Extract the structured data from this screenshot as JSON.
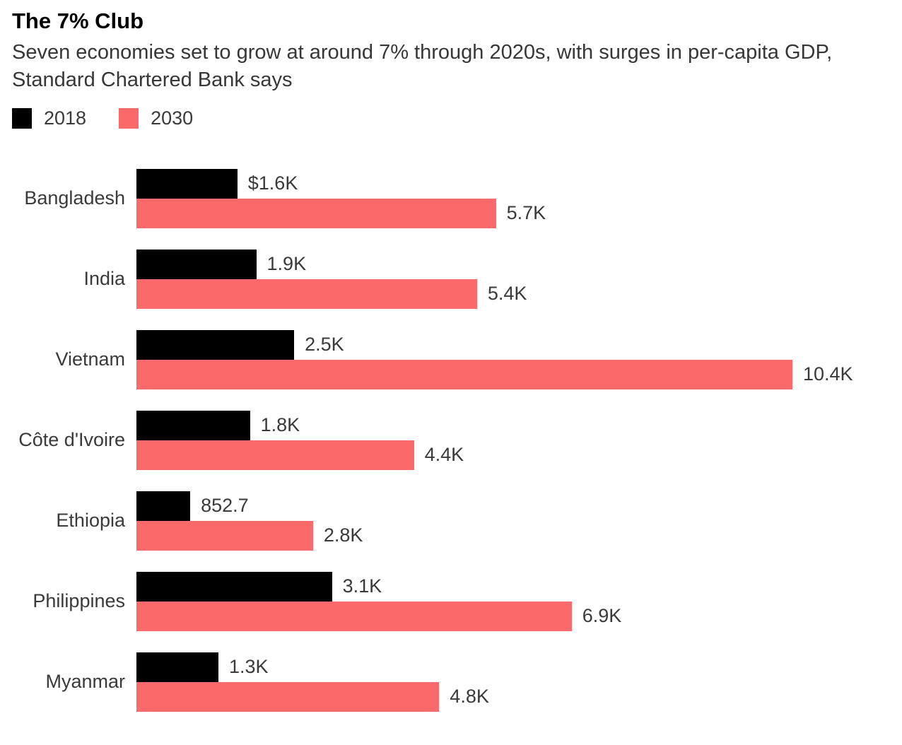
{
  "header": {
    "title": "The 7% Club",
    "subtitle": "Seven economies set to grow at around 7% through 2020s, with surges in per-capita GDP, Standard Chartered Bank says"
  },
  "legend": {
    "items": [
      {
        "label": "2018",
        "color": "#000000"
      },
      {
        "label": "2030",
        "color": "#fa6a6a"
      }
    ]
  },
  "colors": {
    "series_2018": "#000000",
    "series_2030": "#fa6a6a",
    "text": "#3a3a3a",
    "background": "#ffffff"
  },
  "chart_data": {
    "type": "bar",
    "orientation": "horizontal",
    "title": "The 7% Club",
    "subtitle": "Seven economies set to grow at around 7% through 2020s, with surges in per-capita GDP, Standard Chartered Bank says",
    "unit": "per-capita GDP, USD thousands",
    "categories": [
      "Bangladesh",
      "India",
      "Vietnam",
      "Côte d'Ivoire",
      "Ethiopia",
      "Philippines",
      "Myanmar"
    ],
    "series": [
      {
        "name": "2018",
        "color": "#000000",
        "values": [
          1.6,
          1.9,
          2.5,
          1.8,
          0.8527,
          3.1,
          1.3
        ],
        "labels": [
          "$1.6K",
          "1.9K",
          "2.5K",
          "1.8K",
          "852.7",
          "3.1K",
          "1.3K"
        ]
      },
      {
        "name": "2030",
        "color": "#fa6a6a",
        "values": [
          5.7,
          5.4,
          10.4,
          4.4,
          2.8,
          6.9,
          4.8
        ],
        "labels": [
          "5.7K",
          "5.4K",
          "10.4K",
          "4.4K",
          "2.8K",
          "6.9K",
          "4.8K"
        ]
      }
    ],
    "xlim": [
      0,
      10.4
    ],
    "grid": false,
    "axis_ticks_visible": false,
    "legend_position": "top-left",
    "value_labels": "end-of-bar"
  }
}
